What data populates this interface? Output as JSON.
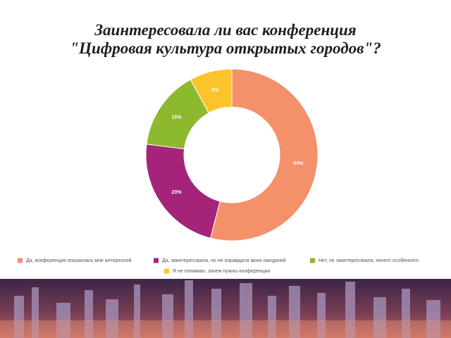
{
  "chart_data": {
    "type": "pie",
    "title": [
      "Заинтересовала ли вас конференция",
      "\"Цифровая культура открытых городов\"?"
    ],
    "categories": [
      "Да, конференция показалась мне интересной",
      "Да, заинтересовала, но не оправдала моих ожиданий",
      "Нет, не заинтересовала, ничего особенного",
      "Я не понимаю, зачем нужны конференции"
    ],
    "values": [
      54,
      23,
      15,
      8
    ],
    "value_labels": [
      "54%",
      "23%",
      "15%",
      "8%"
    ],
    "colors": [
      "#f4906a",
      "#a4247a",
      "#8cb92d",
      "#fcc42c"
    ]
  }
}
